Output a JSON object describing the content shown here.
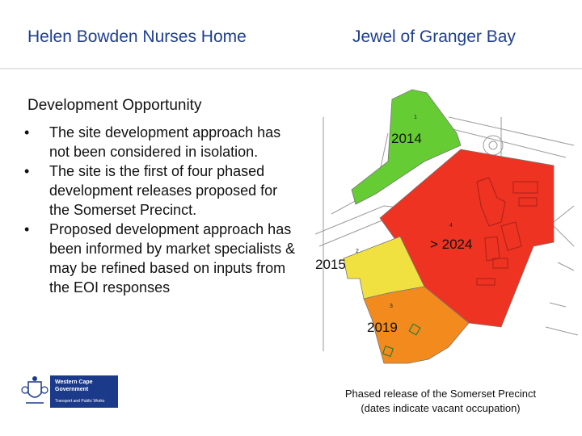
{
  "header": {
    "left_title": "Helen Bowden Nurses Home",
    "right_title": "Jewel of Granger Bay"
  },
  "subtitle": "Development Opportunity",
  "bullets": [
    "The site development approach has not been considered in isolation.",
    "The site is the first of four phased development releases proposed for the Somerset Precinct.",
    "Proposed development approach has been informed by market specialists & may be refined based on inputs from the EOI responses"
  ],
  "bullet_glyph": "•",
  "map": {
    "labels": {
      "phase_2014": "2014",
      "phase_2015": "2015",
      "phase_2019": "2019",
      "phase_2024": "> 2024"
    },
    "plot_numbers": [
      "1",
      "2",
      "3",
      "4"
    ],
    "colors": {
      "green": "#66cc33",
      "red": "#ee3322",
      "yellow": "#f0e040",
      "orange": "#f28a1e",
      "lines": "#9a9a9a"
    }
  },
  "caption": {
    "line1": "Phased release of the Somerset Precinct",
    "line2": "(dates indicate vacant occupation)"
  },
  "logo": {
    "line1": "Western Cape",
    "line2": "Government",
    "line3": "Transport and Public Works",
    "emblem": "coat-of-arms-icon"
  }
}
